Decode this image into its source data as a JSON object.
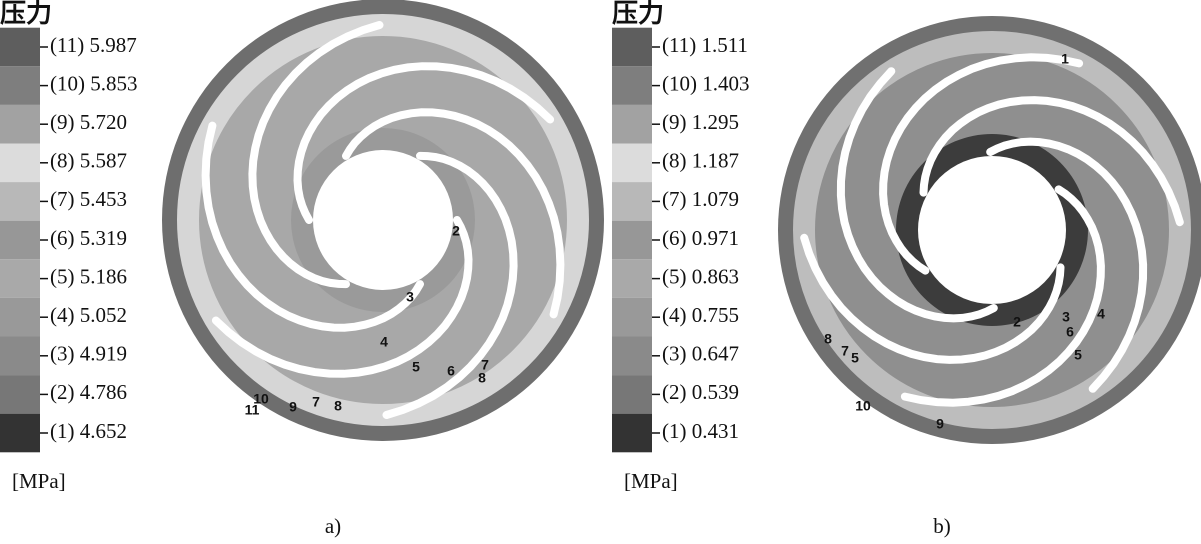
{
  "panels": [
    {
      "title": "压力",
      "legend": [
        "(11) 5.987",
        "(10) 5.853",
        "(9) 5.720",
        "(8) 5.587",
        "(7) 5.453",
        "(6) 5.319",
        "(5) 5.186",
        "(4) 5.052",
        "(3) 4.919",
        "(2) 4.786",
        "(1) 4.652"
      ],
      "unit": "[MPa]",
      "contour_labels": [
        "2",
        "3",
        "4",
        "5",
        "6",
        "7",
        "8",
        "10",
        "11",
        "9",
        "7",
        "8"
      ],
      "caption": "a)"
    },
    {
      "title": "压力",
      "legend": [
        "(11) 1.511",
        "(10) 1.403",
        "(9) 1.295",
        "(8) 1.187",
        "(7) 1.079",
        "(6) 0.971",
        "(5) 0.863",
        "(4) 0.755",
        "(3) 0.647",
        "(2) 0.539",
        "(1) 0.431"
      ],
      "unit": "[MPa]",
      "contour_labels": [
        "1",
        "2",
        "3",
        "4",
        "6",
        "5",
        "8",
        "7",
        "5",
        "10",
        "9"
      ],
      "caption": "b)"
    }
  ]
}
